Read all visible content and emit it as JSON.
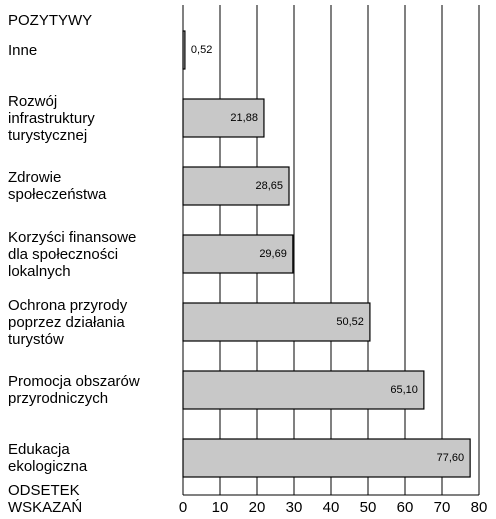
{
  "chart_data": {
    "type": "bar",
    "orientation": "horizontal",
    "title": "POZYTYWY",
    "x_label": "ODSETEK\nWSKAZAŃ",
    "categories": [
      "Inne",
      "Rozwój\ninfrastruktury\nturystycznej",
      "Zdrowie\nspołeczeństwa",
      "Korzyści finansowe\ndla społeczności\nlokalnych",
      "Ochrona przyrody\npoprzez działania\nturystów",
      "Promocja obszarów\nprzyrodniczych",
      "Edukacja\nekologiczna"
    ],
    "values": [
      0.52,
      21.88,
      28.65,
      29.69,
      50.52,
      65.1,
      77.6
    ],
    "value_labels": [
      "0,52",
      "21,88",
      "28,65",
      "29,69",
      "50,52",
      "65,10",
      "77,60"
    ],
    "color": "#c8c8c8",
    "xlim": [
      0,
      80
    ],
    "xticks": [
      0,
      10,
      20,
      30,
      40,
      50,
      60,
      70,
      80
    ],
    "grid": true
  }
}
